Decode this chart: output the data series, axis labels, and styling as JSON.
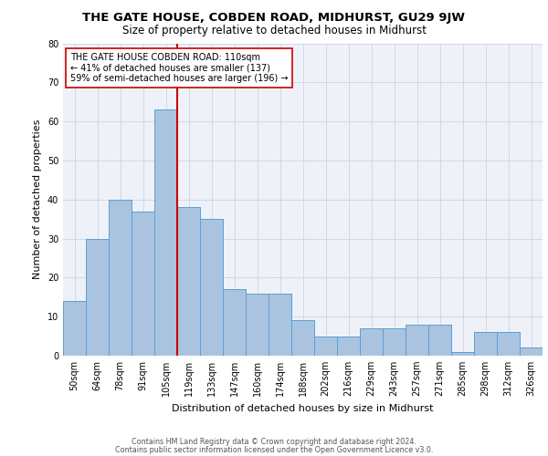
{
  "title1": "THE GATE HOUSE, COBDEN ROAD, MIDHURST, GU29 9JW",
  "title2": "Size of property relative to detached houses in Midhurst",
  "xlabel": "Distribution of detached houses by size in Midhurst",
  "ylabel": "Number of detached properties",
  "bar_labels": [
    "50sqm",
    "64sqm",
    "78sqm",
    "91sqm",
    "105sqm",
    "119sqm",
    "133sqm",
    "147sqm",
    "160sqm",
    "174sqm",
    "188sqm",
    "202sqm",
    "216sqm",
    "229sqm",
    "243sqm",
    "257sqm",
    "271sqm",
    "285sqm",
    "298sqm",
    "312sqm",
    "326sqm"
  ],
  "bar_values": [
    14,
    30,
    40,
    37,
    63,
    38,
    35,
    17,
    16,
    16,
    9,
    5,
    5,
    7,
    7,
    8,
    8,
    1,
    6,
    6,
    2
  ],
  "bar_color": "#aac4e0",
  "bar_edge_color": "#5a9fd4",
  "red_line_color": "#cc0000",
  "annotation_text": "THE GATE HOUSE COBDEN ROAD: 110sqm\n← 41% of detached houses are smaller (137)\n59% of semi-detached houses are larger (196) →",
  "annotation_box_edge": "#cc0000",
  "ylim": [
    0,
    80
  ],
  "yticks": [
    0,
    10,
    20,
    30,
    40,
    50,
    60,
    70,
    80
  ],
  "grid_color": "#d0d8e8",
  "bg_color": "#eef2f8",
  "footer_line1": "Contains HM Land Registry data © Crown copyright and database right 2024.",
  "footer_line2": "Contains public sector information licensed under the Open Government Licence v3.0.",
  "title1_fontsize": 9.5,
  "title2_fontsize": 8.5,
  "xlabel_fontsize": 8,
  "ylabel_fontsize": 8,
  "ann_fontsize": 7,
  "tick_fontsize": 7,
  "footer_fontsize": 5.8
}
